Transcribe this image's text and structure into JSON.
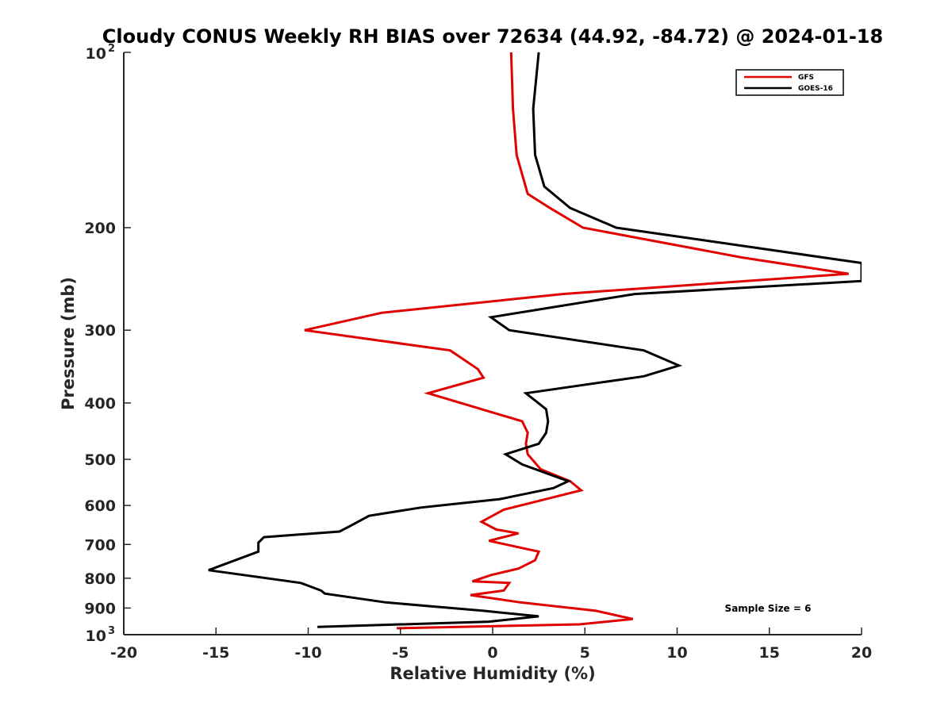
{
  "chart_data": {
    "type": "line",
    "title": "Cloudy CONUS Weekly RH BIAS over 72634 (44.92, -84.72) @ 2024-01-18",
    "xlabel": "Relative Humidity (%)",
    "ylabel": "Pressure (mb)",
    "xlim": [
      -20,
      20
    ],
    "ylim": [
      100,
      1000
    ],
    "y_scale": "log",
    "y_reversed": true,
    "grid": false,
    "legend_position": "top-right",
    "x_ticks": [
      -20,
      -15,
      -10,
      -5,
      0,
      5,
      10,
      15,
      20
    ],
    "x_tick_labels": [
      "-20",
      "-15",
      "-10",
      "-5",
      "0",
      "5",
      "10",
      "15",
      "20"
    ],
    "y_ticks": [
      200,
      300,
      400,
      500,
      600,
      700,
      800,
      900
    ],
    "y_tick_labels": [
      "200",
      "300",
      "400",
      "500",
      "600",
      "700",
      "800",
      "900"
    ],
    "y_end_labels": [
      {
        "value": 100,
        "base": "10",
        "exp": "2"
      },
      {
        "value": 1000,
        "base": "10",
        "exp": "3"
      }
    ],
    "annotation": "Sample Size = 6",
    "series": [
      {
        "name": "GFS",
        "color": "#e00000",
        "points": [
          [
            1.0,
            100
          ],
          [
            1.1,
            125
          ],
          [
            1.3,
            150
          ],
          [
            1.9,
            175
          ],
          [
            3.1,
            185
          ],
          [
            4.9,
            200
          ],
          [
            13.5,
            225
          ],
          [
            19.3,
            240
          ],
          [
            3.8,
            260
          ],
          [
            -6.0,
            280
          ],
          [
            -10.2,
            300
          ],
          [
            -2.3,
            325
          ],
          [
            -0.8,
            350
          ],
          [
            -0.5,
            362
          ],
          [
            -3.5,
            385
          ],
          [
            1.6,
            430
          ],
          [
            1.9,
            450
          ],
          [
            1.8,
            470
          ],
          [
            1.9,
            490
          ],
          [
            2.6,
            520
          ],
          [
            4.2,
            545
          ],
          [
            4.8,
            565
          ],
          [
            2.9,
            585
          ],
          [
            0.6,
            610
          ],
          [
            -0.6,
            640
          ],
          [
            0.2,
            660
          ],
          [
            1.4,
            670
          ],
          [
            -0.2,
            690
          ],
          [
            2.5,
            720
          ],
          [
            2.3,
            745
          ],
          [
            1.4,
            770
          ],
          [
            -0.1,
            790
          ],
          [
            -1.1,
            810
          ],
          [
            0.9,
            815
          ],
          [
            0.6,
            840
          ],
          [
            -1.2,
            855
          ],
          [
            1.5,
            880
          ],
          [
            5.6,
            910
          ],
          [
            7.6,
            940
          ],
          [
            4.7,
            960
          ],
          [
            -5.2,
            975
          ]
        ]
      },
      {
        "name": "GOES-16",
        "color": "#000000",
        "points": [
          [
            2.5,
            100
          ],
          [
            2.2,
            125
          ],
          [
            2.3,
            150
          ],
          [
            2.8,
            170
          ],
          [
            4.2,
            185
          ],
          [
            6.7,
            200
          ],
          [
            20.0,
            230
          ],
          [
            20.0,
            247
          ],
          [
            7.7,
            260
          ],
          [
            -0.1,
            285
          ],
          [
            0.9,
            300
          ],
          [
            8.2,
            325
          ],
          [
            10.1,
            345
          ],
          [
            8.2,
            360
          ],
          [
            1.8,
            385
          ],
          [
            2.9,
            410
          ],
          [
            3.0,
            430
          ],
          [
            2.9,
            450
          ],
          [
            2.5,
            470
          ],
          [
            0.7,
            490
          ],
          [
            1.6,
            510
          ],
          [
            3.4,
            535
          ],
          [
            4.1,
            545
          ],
          [
            3.3,
            560
          ],
          [
            0.4,
            585
          ],
          [
            -3.9,
            605
          ],
          [
            -6.7,
            625
          ],
          [
            -7.7,
            650
          ],
          [
            -8.3,
            665
          ],
          [
            -12.4,
            680
          ],
          [
            -12.7,
            695
          ],
          [
            -12.7,
            720
          ],
          [
            -15.4,
            775
          ],
          [
            -10.4,
            815
          ],
          [
            -9.3,
            840
          ],
          [
            -9.1,
            850
          ],
          [
            -5.8,
            880
          ],
          [
            -0.5,
            910
          ],
          [
            2.5,
            930
          ],
          [
            -0.2,
            950
          ],
          [
            -9.5,
            970
          ]
        ]
      }
    ]
  }
}
